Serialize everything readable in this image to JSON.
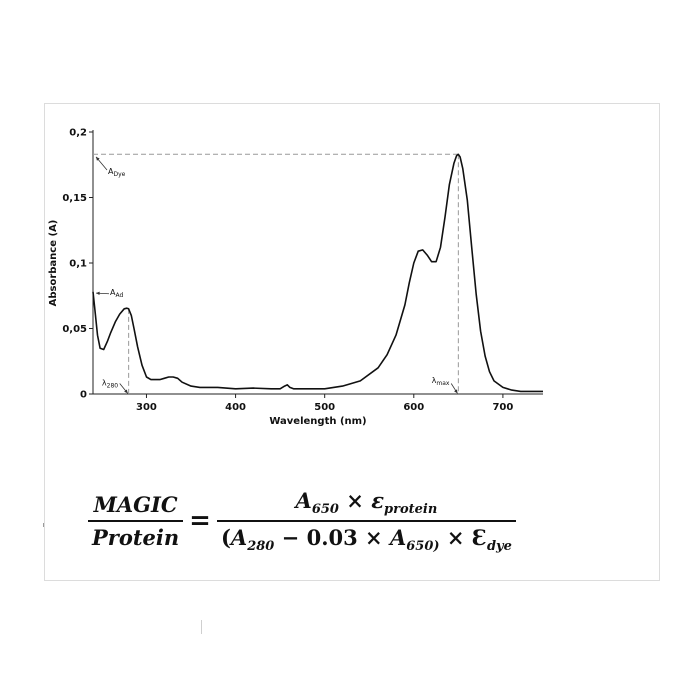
{
  "chart_data": {
    "type": "line",
    "xlabel": "Wavelength (nm)",
    "ylabel": "Absorbance (A)",
    "xlim": [
      240,
      745
    ],
    "ylim": [
      0,
      0.2
    ],
    "x_ticks": [
      300,
      400,
      500,
      600,
      700
    ],
    "x_tick_labels": [
      "300",
      "400",
      "500",
      "600",
      "700"
    ],
    "y_ticks": [
      0,
      0.05,
      0.1,
      0.15,
      0.2
    ],
    "y_tick_labels": [
      "0",
      "0,05",
      "0,1",
      "0,15",
      "0,2"
    ],
    "grid": false,
    "series": [
      {
        "x": [
          240,
          242,
          245,
          248,
          252,
          256,
          260,
          265,
          270,
          275,
          278,
          280,
          283,
          286,
          290,
          295,
          300,
          305,
          310,
          315,
          320,
          325,
          330,
          335,
          340,
          350,
          360,
          380,
          400,
          420,
          440,
          450,
          455,
          458,
          461,
          465,
          470,
          480,
          500,
          520,
          540,
          560,
          570,
          580,
          590,
          595,
          600,
          605,
          610,
          615,
          620,
          625,
          630,
          635,
          640,
          645,
          648,
          650,
          652,
          655,
          660,
          665,
          670,
          675,
          680,
          685,
          690,
          700,
          710,
          720,
          730,
          740,
          745
        ],
        "y": [
          0.078,
          0.065,
          0.045,
          0.035,
          0.034,
          0.04,
          0.047,
          0.055,
          0.061,
          0.065,
          0.0655,
          0.065,
          0.06,
          0.05,
          0.036,
          0.022,
          0.013,
          0.011,
          0.011,
          0.011,
          0.012,
          0.013,
          0.013,
          0.012,
          0.009,
          0.006,
          0.005,
          0.005,
          0.004,
          0.0045,
          0.004,
          0.004,
          0.006,
          0.007,
          0.005,
          0.004,
          0.004,
          0.004,
          0.004,
          0.006,
          0.01,
          0.02,
          0.03,
          0.045,
          0.068,
          0.085,
          0.1,
          0.109,
          0.11,
          0.106,
          0.101,
          0.101,
          0.112,
          0.135,
          0.16,
          0.176,
          0.182,
          0.183,
          0.181,
          0.172,
          0.148,
          0.112,
          0.076,
          0.048,
          0.029,
          0.017,
          0.01,
          0.005,
          0.003,
          0.002,
          0.002,
          0.002,
          0.002
        ]
      }
    ],
    "annotations": [
      {
        "main": "A",
        "sub": "Dye"
      },
      {
        "main": "A",
        "sub": "Ad"
      },
      {
        "main": "λ",
        "sub": "280"
      },
      {
        "main": "λ",
        "sub": "max"
      }
    ],
    "guide_lines": [
      {
        "from": [
          240,
          0.183
        ],
        "to": [
          650,
          0.183
        ]
      },
      {
        "from": [
          650,
          0.183
        ],
        "to": [
          650,
          0
        ]
      },
      {
        "from": [
          280,
          0.065
        ],
        "to": [
          280,
          0
        ]
      }
    ]
  },
  "formula": {
    "lhs_num": "MAGIC",
    "lhs_den": "Protein",
    "equals": "=",
    "a650_base": "A",
    "a650_sub": "650",
    "times": "×",
    "eps": "ε",
    "eps_sub": "protein",
    "open": "(",
    "a280_base": "A",
    "a280_sub": "280",
    "minus": "−",
    "coef": "0.03",
    "times2": "×",
    "a650b_base": "A",
    "a650b_sub": "650)",
    "times3": "×",
    "eps_dye": "Ɛ",
    "eps_dye_sub": "dye"
  }
}
